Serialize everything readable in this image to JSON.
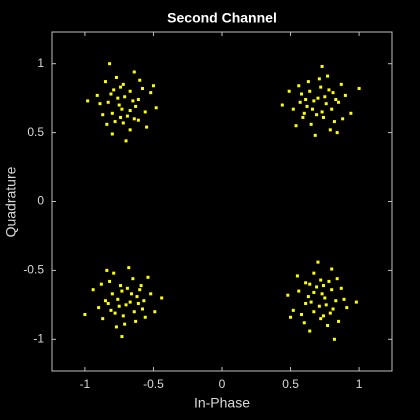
{
  "chart_data": {
    "type": "scatter",
    "title": "Second Channel",
    "x_label": "In-Phase",
    "y_label": "Quadrature",
    "color": "#ffff00",
    "x": [
      0.73,
      0.58,
      0.85,
      0.65,
      0.78,
      0.52,
      0.71,
      0.82,
      0.61,
      0.9,
      0.68,
      0.76,
      0.56,
      0.8,
      0.64,
      0.74,
      0.49,
      0.87,
      0.67,
      0.79,
      0.59,
      0.72,
      0.94,
      0.62,
      0.75,
      0.54,
      0.83,
      0.69,
      0.77,
      0.44,
      0.81,
      0.66,
      0.7,
      0.57,
      0.88,
      0.63,
      0.84,
      0.6,
      0.73,
      1.0,
      -0.65,
      -0.78,
      -0.72,
      -0.56,
      -0.81,
      -0.67,
      -0.89,
      -0.58,
      -0.74,
      -0.77,
      -0.48,
      -0.71,
      -0.84,
      -0.67,
      -0.8,
      -0.61,
      -0.8,
      -0.85,
      -0.73,
      -0.52,
      -0.61,
      -0.83,
      -0.64,
      -0.69,
      -0.76,
      -0.55,
      -0.74,
      -0.63,
      -0.91,
      -0.7,
      -0.79,
      -0.67,
      -0.75,
      -0.72,
      -0.6,
      -0.87,
      -0.5,
      -0.64,
      -0.98,
      -0.82,
      -0.73,
      -0.58,
      -0.85,
      -0.65,
      -0.78,
      -0.52,
      -0.71,
      -0.82,
      -0.61,
      -0.9,
      -0.68,
      -0.76,
      -0.56,
      -0.8,
      -0.64,
      -0.74,
      -0.49,
      -0.87,
      -0.67,
      -0.79,
      -0.59,
      -0.72,
      -0.94,
      -0.62,
      -0.75,
      -0.54,
      -0.83,
      -0.69,
      -0.77,
      -0.44,
      -0.81,
      -0.66,
      -0.7,
      -0.57,
      -0.88,
      -0.63,
      -0.84,
      -0.6,
      -0.73,
      -1.0,
      0.65,
      0.78,
      0.72,
      0.56,
      0.81,
      0.67,
      0.89,
      0.58,
      0.74,
      0.77,
      0.48,
      0.71,
      0.84,
      0.67,
      0.8,
      0.61,
      0.8,
      0.85,
      0.73,
      0.52,
      0.61,
      0.83,
      0.64,
      0.69,
      0.76,
      0.55,
      0.74,
      0.63,
      0.91,
      0.7,
      0.79,
      0.67,
      0.75,
      0.72,
      0.6,
      0.87,
      0.5,
      0.64,
      0.98,
      0.82
    ],
    "values": [
      0.65,
      0.78,
      0.72,
      0.56,
      0.81,
      0.67,
      0.89,
      0.58,
      0.74,
      0.77,
      0.48,
      0.71,
      0.84,
      0.67,
      0.8,
      0.61,
      0.8,
      0.85,
      0.73,
      0.52,
      0.61,
      0.83,
      0.64,
      0.69,
      0.76,
      0.55,
      0.74,
      0.63,
      0.91,
      0.7,
      0.79,
      0.67,
      0.75,
      0.72,
      0.6,
      0.87,
      0.5,
      0.64,
      0.98,
      0.82,
      0.73,
      0.58,
      0.85,
      0.65,
      0.78,
      0.52,
      0.71,
      0.82,
      0.61,
      0.9,
      0.68,
      0.76,
      0.56,
      0.8,
      0.64,
      0.74,
      0.49,
      0.87,
      0.67,
      0.79,
      0.59,
      0.72,
      0.94,
      0.62,
      0.75,
      0.54,
      0.83,
      0.69,
      0.77,
      0.44,
      0.81,
      0.66,
      0.7,
      0.57,
      0.88,
      0.63,
      0.84,
      0.6,
      0.73,
      1.0,
      -0.65,
      -0.78,
      -0.72,
      -0.56,
      -0.81,
      -0.67,
      -0.89,
      -0.58,
      -0.74,
      -0.77,
      -0.48,
      -0.71,
      -0.84,
      -0.67,
      -0.8,
      -0.61,
      -0.8,
      -0.85,
      -0.73,
      -0.52,
      -0.61,
      -0.83,
      -0.64,
      -0.69,
      -0.76,
      -0.55,
      -0.74,
      -0.63,
      -0.91,
      -0.7,
      -0.79,
      -0.67,
      -0.75,
      -0.72,
      -0.6,
      -0.87,
      -0.5,
      -0.64,
      -0.98,
      -0.82,
      -0.73,
      -0.58,
      -0.85,
      -0.65,
      -0.78,
      -0.52,
      -0.71,
      -0.82,
      -0.61,
      -0.9,
      -0.68,
      -0.76,
      -0.56,
      -0.8,
      -0.64,
      -0.74,
      -0.49,
      -0.87,
      -0.67,
      -0.79,
      -0.59,
      -0.72,
      -0.94,
      -0.62,
      -0.75,
      -0.54,
      -0.83,
      -0.69,
      -0.77,
      -0.44,
      -0.81,
      -0.66,
      -0.7,
      -0.57,
      -0.88,
      -0.63,
      -0.84,
      -0.6,
      -0.73,
      -1.0
    ],
    "xlim": [
      -1.24,
      1.24
    ],
    "ylim": [
      -1.23,
      1.23
    ],
    "xticks": [
      -1,
      -0.5,
      0,
      0.5,
      1
    ],
    "yticks": [
      -1,
      -0.5,
      0,
      0.5,
      1
    ]
  }
}
